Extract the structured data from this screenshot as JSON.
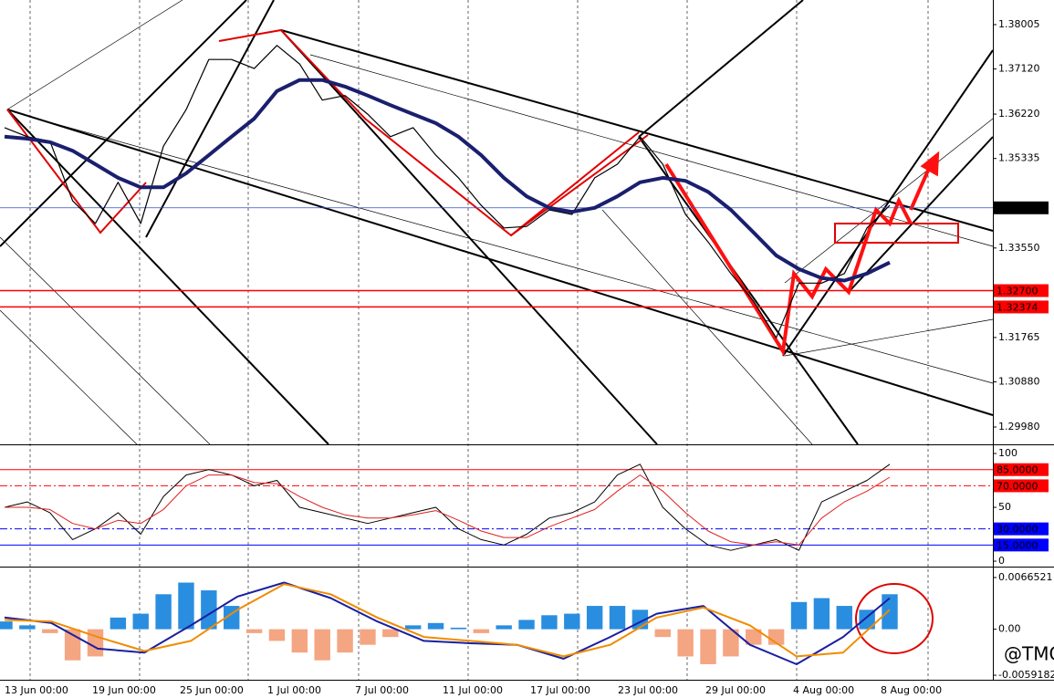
{
  "chart_data": [
    {
      "type": "line",
      "panel": "price",
      "ylim": [
        1.29634,
        1.38496
      ],
      "yticks": [
        1.38005,
        {
          "value": 1.3712,
          "label": "1.37120"
        },
        {
          "value": 1.3622,
          "label": "1.36220"
        },
        1.35335,
        {
          "value": 1.3355,
          "label": "1.33550"
        },
        1.31765,
        {
          "value": 1.3088,
          "label": "1.30880"
        },
        {
          "value": 1.2998,
          "label": "1.29980"
        }
      ],
      "last_price": {
        "value": 1.34351,
        "label": "1.34351",
        "color": "#3050c8"
      },
      "levels": [
        {
          "value": 1.327,
          "label": "1.32700",
          "color": "#ff0000"
        },
        {
          "value": 1.32374,
          "label": "1.32374",
          "color": "#ff0000"
        }
      ],
      "series": [
        {
          "color": "#000000",
          "width": 1.2,
          "values": [
            1.3595,
            1.3577,
            1.3568,
            1.3449,
            1.3404,
            1.3486,
            1.3404,
            1.3558,
            1.3631,
            1.3731,
            1.3731,
            1.3713,
            1.3759,
            1.3722,
            1.365,
            1.3659,
            1.3622,
            1.3577,
            1.3595,
            1.354,
            1.3495,
            1.344,
            1.3395,
            1.3398,
            1.3431,
            1.3422,
            1.3495,
            1.3522,
            1.3577,
            1.3522,
            1.3422,
            1.3367,
            1.3304,
            1.3249,
            1.3176,
            1.3285,
            1.3285,
            1.3304,
            1.3395,
            1.344
          ]
        },
        {
          "color": "#1a1f6e",
          "width": 4,
          "values": [
            1.3577,
            1.3573,
            1.3566,
            1.3549,
            1.3522,
            1.3495,
            1.3476,
            1.3476,
            1.3504,
            1.354,
            1.3577,
            1.3613,
            1.3668,
            1.369,
            1.369,
            1.3677,
            1.3659,
            1.364,
            1.3622,
            1.3604,
            1.3577,
            1.354,
            1.3495,
            1.3458,
            1.3435,
            1.3427,
            1.3435,
            1.3458,
            1.3486,
            1.3495,
            1.3489,
            1.3467,
            1.3431,
            1.3386,
            1.334,
            1.3313,
            1.3295,
            1.329,
            1.3304,
            1.3326
          ]
        }
      ]
    },
    {
      "type": "line",
      "panel": "stochastic",
      "ylim": [
        -4.2,
        106.8
      ],
      "yticks": [
        100,
        50,
        0
      ],
      "levels": [
        {
          "value": 85,
          "label": "85.0000",
          "color": "#ff0000"
        },
        {
          "value": 70,
          "label": "70.0000",
          "color": "#ff0000"
        },
        {
          "value": 30,
          "label": "30.0000",
          "color": "#0000ff"
        },
        {
          "value": 15,
          "label": "15.0000",
          "color": "#0000ff"
        }
      ],
      "series": [
        {
          "color": "#000000",
          "width": 1,
          "values": [
            50,
            55,
            45,
            20,
            30,
            45,
            25,
            60,
            80,
            85,
            80,
            70,
            75,
            50,
            45,
            40,
            35,
            40,
            45,
            50,
            30,
            20,
            15,
            25,
            40,
            45,
            55,
            80,
            90,
            50,
            30,
            15,
            10,
            15,
            20,
            10,
            55,
            65,
            75,
            90
          ]
        },
        {
          "color": "#e02020",
          "width": 1,
          "values": [
            50,
            50,
            48,
            35,
            30,
            38,
            35,
            48,
            70,
            80,
            80,
            73,
            72,
            60,
            50,
            43,
            40,
            40,
            43,
            47,
            38,
            28,
            22,
            22,
            32,
            40,
            48,
            65,
            80,
            65,
            45,
            28,
            18,
            15,
            18,
            15,
            40,
            55,
            65,
            78
          ]
        }
      ]
    },
    {
      "type": "bar",
      "panel": "macd",
      "ylim": [
        -0.0065,
        0.00782
      ],
      "yticks": [
        0.0066521,
        {
          "value": 0,
          "label": "0.00"
        },
        -0.0059182
      ],
      "histogram": {
        "up_color": "#2a8ee0",
        "down_color": "#f4a582",
        "values": [
          0.001,
          0.0005,
          -0.0005,
          -0.004,
          -0.0035,
          0.0015,
          0.002,
          0.0045,
          0.006,
          0.005,
          0.003,
          -0.0005,
          -0.0015,
          -0.003,
          -0.004,
          -0.003,
          -0.002,
          -0.001,
          0.0005,
          0.0008,
          0.0002,
          -0.0005,
          0.0005,
          0.0012,
          0.0018,
          0.002,
          0.003,
          0.003,
          0.0025,
          -0.001,
          -0.0035,
          -0.0045,
          -0.0035,
          -0.002,
          -0.002,
          0.0035,
          0.004,
          0.003,
          0.0025,
          0.0045
        ]
      },
      "series": [
        {
          "color": "#1a1fa0",
          "width": 2,
          "values": [
            0.0015,
            0.0008,
            -0.0025,
            -0.003,
            0.0005,
            0.0042,
            0.006,
            0.004,
            0.001,
            -0.0015,
            -0.0018,
            -0.002,
            -0.0038,
            -0.001,
            0.002,
            0.003,
            -0.002,
            -0.0045,
            -0.001,
            0.004
          ]
        },
        {
          "color": "#f08c00",
          "width": 2,
          "values": [
            0.0012,
            0.001,
            -0.001,
            -0.0028,
            -0.0015,
            0.0025,
            0.0058,
            0.0045,
            0.0015,
            -0.001,
            -0.0015,
            -0.002,
            -0.0035,
            -0.002,
            0.0015,
            0.0028,
            0.0005,
            -0.0035,
            -0.003,
            0.0025
          ]
        }
      ]
    }
  ],
  "time_axis": [
    "13 Jun 00:00",
    "19 Jun 00:00",
    "25 Jun 00:00",
    "1 Jul 00:00",
    "7 Jul 00:00",
    "11 Jul 00:00",
    "17 Jul 00:00",
    "23 Jul 00:00",
    "29 Jul 00:00",
    "4 Aug 00:00",
    "8 Aug 00:00"
  ],
  "watermark": "@TMGM"
}
